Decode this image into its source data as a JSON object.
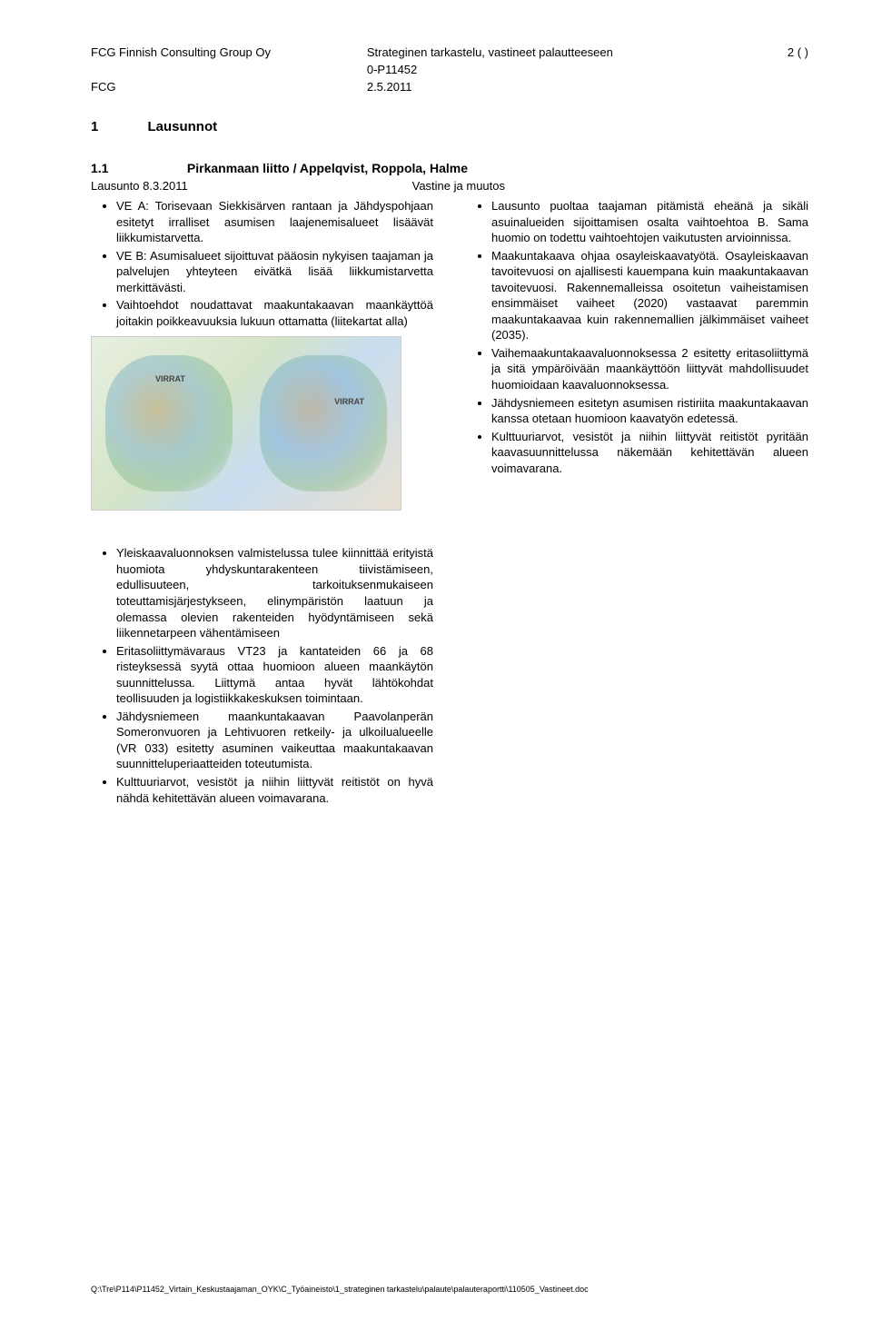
{
  "header": {
    "company": "FCG Finnish Consulting Group Oy",
    "doc_title": "Strateginen tarkastelu, vastineet palautteeseen",
    "doc_code": "0-P11452",
    "page_label": "2 ( )",
    "org": "FCG",
    "date": "2.5.2011"
  },
  "section": {
    "num": "1",
    "title": "Lausunnot",
    "sub_num": "1.1",
    "sub_title": "Pirkanmaan liitto / Appelqvist, Roppola, Halme",
    "lausunto_label": "Lausunto 8.3.2011",
    "vastine_label": "Vastine ja muutos"
  },
  "left_top": [
    "VE A: Torisevaan Siekkisärven rantaan ja Jähdyspohjaan esitetyt irralliset asumisen laajenemisalueet lisäävät liikkumistarvetta.",
    "VE B: Asumisalueet sijoittuvat pääosin nykyisen taajaman ja palvelujen yhteyteen eivätkä lisää liikkumistarvetta merkittävästi.",
    "Vaihtoehdot noudattavat maakuntakaavan maankäyttöä joitakin poikkeavuuksia lukuun ottamatta (liitekartat alla)"
  ],
  "map": {
    "label_left": "VIRRAT",
    "label_right": "VIRRAT"
  },
  "right_top": [
    "Lausunto puoltaa taajaman pitämistä eheänä ja sikäli asuinalueiden sijoittamisen osalta vaihtoehtoa B. Sama huomio on todettu vaihtoehtojen vaikutusten arvioinnissa.",
    "Maakuntakaava ohjaa osayleiskaavatyötä. Osayleiskaavan tavoitevuosi on ajallisesti kauempana kuin maakuntakaavan tavoitevuosi. Rakennemalleissa osoitetun vaiheistamisen ensimmäiset vaiheet (2020) vastaavat paremmin maakuntakaavaa kuin rakennemallien jälkimmäiset vaiheet (2035).",
    "Vaihemaakuntakaavaluonnoksessa 2 esitetty eritasoliittymä ja sitä ympäröivään maankäyttöön liittyvät mahdollisuudet huomioidaan kaavaluonnoksessa.",
    "Jähdysniemeen esitetyn asumisen ristiriita maakuntakaavan kanssa otetaan huomioon kaavatyön edetessä.",
    "Kulttuuriarvot, vesistöt ja niihin liittyvät reitistöt pyritään kaavasuunnittelussa näkemään kehitettävän alueen voimavarana."
  ],
  "left_bottom": [
    "Yleiskaavaluonnoksen valmistelussa tulee kiinnittää erityistä huomiota yhdyskuntarakenteen tiivistämiseen, edullisuuteen, tarkoituksenmukaiseen toteuttamisjärjestykseen, elinympäristön laatuun ja olemassa olevien rakenteiden hyödyntämiseen sekä liikennetarpeen vähentämiseen",
    "Eritasoliittymävaraus VT23 ja kantateiden 66 ja 68 risteyksessä syytä ottaa huomioon alueen maankäytön suunnittelussa. Liittymä antaa hyvät lähtökohdat teollisuuden ja logistiikkakeskuksen toimintaan.",
    "Jähdysniemeen maankuntakaavan Paavolanperän Someronvuoren ja Lehtivuoren retkeily- ja ulkoilualueelle (VR 033) esitetty asuminen vaikeuttaa maakuntakaavan suunnitteluperiaatteiden toteutumista.",
    "Kulttuuriarvot, vesistöt ja niihin liittyvät reitistöt on hyvä nähdä kehitettävän alueen voimavarana."
  ],
  "footer": {
    "path": "Q:\\Tre\\P114\\P11452_Virtain_Keskustaajaman_OYK\\C_Työaineisto\\1_strateginen tarkastelu\\palaute\\palauteraportti\\110505_Vastineet.doc"
  },
  "colors": {
    "text": "#000000",
    "background": "#ffffff"
  },
  "typography": {
    "body_fontsize_pt": 10,
    "header_fontsize_pt": 10,
    "section_fontsize_pt": 11,
    "font_family": "Verdana"
  }
}
